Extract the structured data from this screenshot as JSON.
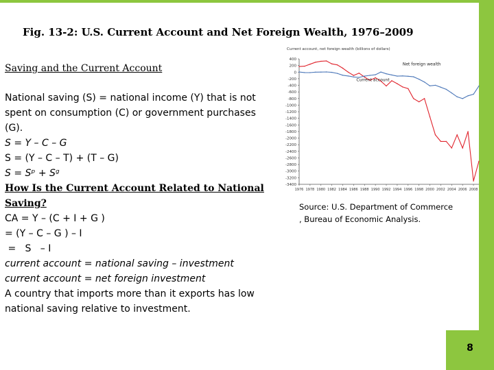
{
  "slide": {
    "title": "Fig. 13-2: U.S. Current Account and Net Foreign Wealth, 1976–2009",
    "subtitle": "Saving and the Current Account",
    "page_number": "8"
  },
  "body": {
    "line1": "National saving (S) = national income (Y) that is not",
    "line2": "spent on consumption (C) or government purchases",
    "line3": "(G).",
    "line4": "S = Y – C – G",
    "line5": "S = (Y – C – T) + (T – G)",
    "line6": "S = Sᵖ + Sᵍ",
    "line7": "How Is the Current Account Related to National",
    "line8": "Saving?",
    "line9": "CA = Y – (C + I + G )",
    "line10": "= (Y – C – G ) – I",
    "line11": " =   S   – I",
    "line12": "current account = national saving – investment",
    "line13": "current account = net foreign investment",
    "line14": "A country that imports more than it exports has low",
    "line15": "national saving relative to investment."
  },
  "source": {
    "line1": "Source: U.S. Department of Commerce",
    "line2": ", Bureau of Economic Analysis."
  },
  "colors": {
    "accent_green": "#8dc63f",
    "current_account_line": "#4a76b8",
    "net_foreign_wealth_line": "#e0242d"
  },
  "chart_data": {
    "type": "line",
    "ylabel": "Current account, net foreign wealth (billions of dollars)",
    "ylim": [
      -3400,
      400
    ],
    "yticks": [
      "400",
      "200",
      "0",
      "-200",
      "-400",
      "-600",
      "-800",
      "-1000",
      "-1200",
      "-1400",
      "-1600",
      "-1800",
      "-2000",
      "-2200",
      "-2400",
      "-2600",
      "-2800",
      "-3000",
      "-3200",
      "-3400"
    ],
    "xlim": [
      1976,
      2009
    ],
    "xticks": [
      "1976",
      "1978",
      "1980",
      "1982",
      "1984",
      "1986",
      "1988",
      "1990",
      "1992",
      "1994",
      "1996",
      "1998",
      "2000",
      "2002",
      "2004",
      "2006",
      "2008"
    ],
    "annotations": [
      "Net foreign wealth",
      "Current account"
    ],
    "series": [
      {
        "name": "Net foreign wealth",
        "x": [
          1976,
          1977,
          1978,
          1979,
          1980,
          1981,
          1982,
          1983,
          1984,
          1985,
          1986,
          1987,
          1988,
          1989,
          1990,
          1991,
          1992,
          1993,
          1994,
          1995,
          1996,
          1997,
          1998,
          1999,
          2000,
          2001,
          2002,
          2003,
          2004,
          2005,
          2006,
          2007,
          2008,
          2009
        ],
        "y": [
          170,
          180,
          240,
          300,
          330,
          340,
          250,
          220,
          120,
          0,
          -100,
          -30,
          -150,
          -250,
          -170,
          -270,
          -420,
          -260,
          -350,
          -450,
          -500,
          -800,
          -900,
          -800,
          -1350,
          -1900,
          -2100,
          -2100,
          -2300,
          -1900,
          -2300,
          -1800,
          -3300,
          -2700
        ]
      },
      {
        "name": "Current account",
        "x": [
          1976,
          1977,
          1978,
          1979,
          1980,
          1981,
          1982,
          1983,
          1984,
          1985,
          1986,
          1987,
          1988,
          1989,
          1990,
          1991,
          1992,
          1993,
          1994,
          1995,
          1996,
          1997,
          1998,
          1999,
          2000,
          2001,
          2002,
          2003,
          2004,
          2005,
          2006,
          2007,
          2008,
          2009
        ],
        "y": [
          4,
          -14,
          -15,
          -1,
          2,
          5,
          -6,
          -39,
          -94,
          -118,
          -147,
          -161,
          -121,
          -99,
          -79,
          3,
          -51,
          -85,
          -122,
          -114,
          -125,
          -141,
          -214,
          -300,
          -416,
          -397,
          -458,
          -521,
          -631,
          -749,
          -803,
          -718,
          -669,
          -420
        ]
      }
    ]
  }
}
